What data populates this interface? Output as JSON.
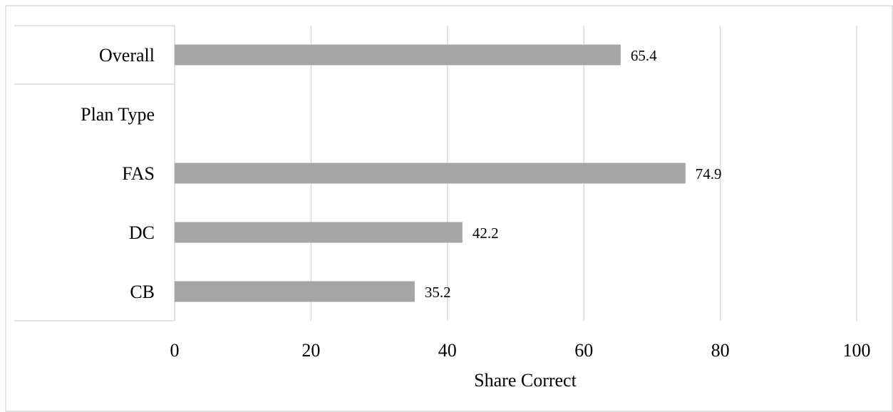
{
  "chart_data": {
    "type": "bar",
    "orientation": "horizontal",
    "categories": [
      "Overall",
      "Plan Type",
      "FAS",
      "DC",
      "CB"
    ],
    "values": [
      65.4,
      null,
      74.9,
      42.2,
      35.2
    ],
    "value_labels": [
      "65.4",
      "",
      "74.9",
      "42.2",
      "35.2"
    ],
    "xlabel": "Share Correct",
    "xlim": [
      0,
      100
    ],
    "xticks": [
      "0",
      "20",
      "40",
      "60",
      "80",
      "100"
    ],
    "grid": "vertical",
    "bar_color": "#a5a5a5",
    "gridline_color": "#d9d9d9",
    "frame_color": "#d9d9d9"
  }
}
